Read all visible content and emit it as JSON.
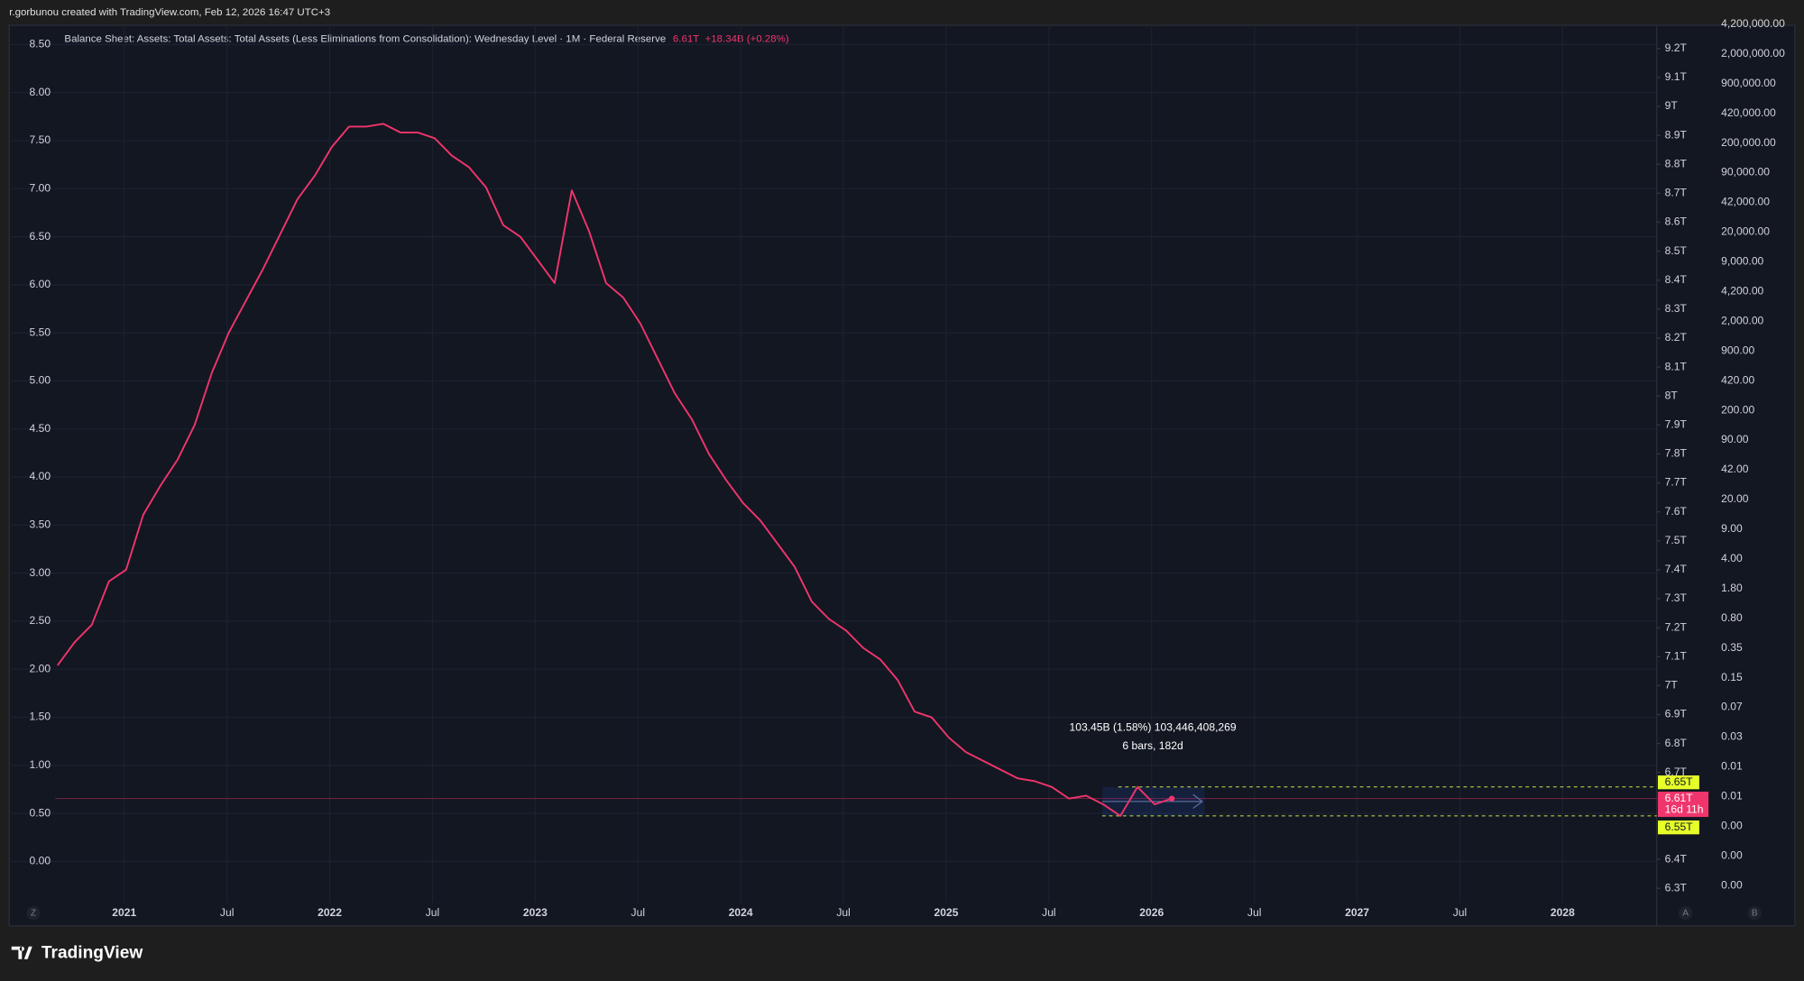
{
  "header": "r.gorbunou created with TradingView.com, Feb 12, 2026 16:47 UTC+3",
  "brand": "TradingView",
  "chart_data": {
    "type": "line",
    "title": "Balance Sheet: Assets: Total Assets: Total Assets (Less Eliminations from Consolidation): Wednesday Level · 1M · Federal Reserve",
    "last_value_label": "6.61T",
    "change_label": "+18.34B (+0.28%)",
    "series": [
      {
        "name": "Total Assets",
        "color": "#f0356c",
        "values": [
          7.07,
          7.15,
          7.21,
          7.36,
          7.4,
          7.59,
          7.69,
          7.78,
          7.9,
          8.08,
          8.22,
          8.33,
          8.44,
          8.56,
          8.68,
          8.76,
          8.86,
          8.93,
          8.93,
          8.94,
          8.91,
          8.91,
          8.89,
          8.83,
          8.79,
          8.72,
          8.59,
          8.55,
          8.47,
          8.39,
          8.71,
          8.57,
          8.39,
          8.34,
          8.25,
          8.13,
          8.01,
          7.92,
          7.8,
          7.71,
          7.63,
          7.57,
          7.49,
          7.41,
          7.29,
          7.23,
          7.19,
          7.13,
          7.09,
          7.02,
          6.91,
          6.89,
          6.82,
          6.77,
          6.74,
          6.71,
          6.68,
          6.67,
          6.65,
          6.61,
          6.62,
          6.59,
          6.55,
          6.65,
          6.59,
          6.61
        ]
      }
    ],
    "ylim": [
      6.25,
      9.28
    ],
    "yticks": [
      {
        "value": 9.2,
        "label": "9.2T"
      },
      {
        "value": 9.1,
        "label": "9.1T"
      },
      {
        "value": 9,
        "label": "9T"
      },
      {
        "value": 8.9,
        "label": "8.9T"
      },
      {
        "value": 8.8,
        "label": "8.8T"
      },
      {
        "value": 8.7,
        "label": "8.7T"
      },
      {
        "value": 8.6,
        "label": "8.6T"
      },
      {
        "value": 8.5,
        "label": "8.5T"
      },
      {
        "value": 8.4,
        "label": "8.4T"
      },
      {
        "value": 8.3,
        "label": "8.3T"
      },
      {
        "value": 8.2,
        "label": "8.2T"
      },
      {
        "value": 8.1,
        "label": "8.1T"
      },
      {
        "value": 8,
        "label": "8T"
      },
      {
        "value": 7.9,
        "label": "7.9T"
      },
      {
        "value": 7.8,
        "label": "7.8T"
      },
      {
        "value": 7.7,
        "label": "7.7T"
      },
      {
        "value": 7.6,
        "label": "7.6T"
      },
      {
        "value": 7.5,
        "label": "7.5T"
      },
      {
        "value": 7.4,
        "label": "7.4T"
      },
      {
        "value": 7.3,
        "label": "7.3T"
      },
      {
        "value": 7.2,
        "label": "7.2T"
      },
      {
        "value": 7.1,
        "label": "7.1T"
      },
      {
        "value": 7,
        "label": "7T"
      },
      {
        "value": 6.9,
        "label": "6.9T"
      },
      {
        "value": 6.8,
        "label": "6.8T"
      },
      {
        "value": 6.7,
        "label": "6.7T"
      },
      {
        "value": 6.4,
        "label": "6.4T"
      },
      {
        "value": 6.3,
        "label": "6.3T"
      }
    ],
    "y2lim": [
      -0.43,
      8.7
    ],
    "y2ticks": [
      {
        "value": 8.5,
        "label": "8.50"
      },
      {
        "value": 8,
        "label": "8.00"
      },
      {
        "value": 7.5,
        "label": "7.50"
      },
      {
        "value": 7,
        "label": "7.00"
      },
      {
        "value": 6.5,
        "label": "6.50"
      },
      {
        "value": 6,
        "label": "6.00"
      },
      {
        "value": 5.5,
        "label": "5.50"
      },
      {
        "value": 5,
        "label": "5.00"
      },
      {
        "value": 4.5,
        "label": "4.50"
      },
      {
        "value": 4,
        "label": "4.00"
      },
      {
        "value": 3.5,
        "label": "3.50"
      },
      {
        "value": 3,
        "label": "3.00"
      },
      {
        "value": 2.5,
        "label": "2.50"
      },
      {
        "value": 2,
        "label": "2.00"
      },
      {
        "value": 1.5,
        "label": "1.50"
      },
      {
        "value": 1,
        "label": "1.00"
      },
      {
        "value": 0.5,
        "label": "0.50"
      },
      {
        "value": 0,
        "label": "0.00"
      }
    ],
    "log_scale_labels": [
      "4,200,000.00",
      "2,000,000.00",
      "900,000.00",
      "420,000.00",
      "200,000.00",
      "90,000.00",
      "42,000.00",
      "20,000.00",
      "9,000.00",
      "4,200.00",
      "2,000.00",
      "900.00",
      "420.00",
      "200.00",
      "90.00",
      "42.00",
      "20.00",
      "9.00",
      "4.00",
      "1.80",
      "0.80",
      "0.35",
      "0.15",
      "0.07",
      "0.03",
      "0.01",
      "0.01",
      "0.00",
      "0.00",
      "0.00"
    ],
    "x_labels": [
      "2021",
      "Jul",
      "2022",
      "Jul",
      "2023",
      "Jul",
      "2024",
      "Jul",
      "2025",
      "Jul",
      "2026",
      "Jul",
      "2027",
      "Jul",
      "2028"
    ],
    "price_labels": [
      {
        "value": 6.65,
        "label": "6.65T"
      },
      {
        "value": 6.61,
        "label": "6.61T"
      },
      {
        "value": 6.55,
        "label": "6.55T"
      }
    ],
    "countdown": "16d 11h",
    "measure_label": "103.45B (1.58%) 103,446,408,269",
    "measure_bars": "6 bars, 182d",
    "corner_buttons": [
      "Z",
      "A",
      "B"
    ],
    "grid": true
  }
}
